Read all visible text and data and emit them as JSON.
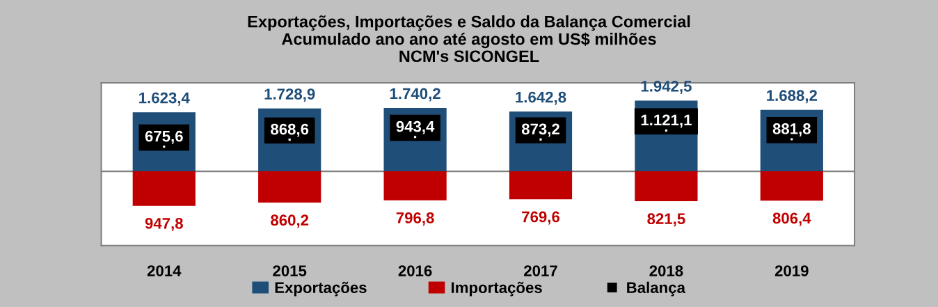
{
  "chart_data": {
    "type": "bar",
    "title": "Exportações, Importações e Saldo da Balança Comercial\nAcumulado ano ano até agosto em US$ milhões\nNCM's SICONGEL",
    "categories": [
      "2014",
      "2015",
      "2016",
      "2017",
      "2018",
      "2019"
    ],
    "stacked": true,
    "series": [
      {
        "name": "Exportações",
        "color": "#1f4e79",
        "values": [
          1623.4,
          1728.9,
          1740.2,
          1642.8,
          1942.5,
          1688.2
        ],
        "value_labels": [
          "1.623,4",
          "1.728,9",
          "1.740,2",
          "1.642,8",
          "1.942,5",
          "1.688,2"
        ]
      },
      {
        "name": "Importações",
        "color": "#c00000",
        "values": [
          -947.8,
          -860.2,
          -796.8,
          -769.6,
          -821.5,
          -806.4
        ]
      },
      {
        "name": "Balança",
        "type": "scatter",
        "marker": "square",
        "color": "#000000",
        "values": [
          675.6,
          868.6,
          943.4,
          873.2,
          1121.1,
          881.8
        ],
        "value_labels": [
          "675,6",
          "868,6",
          "943,4",
          "873,2",
          "1.121,1",
          "881,8"
        ]
      }
    ],
    "annotations": [
      {
        "text": "947,8",
        "x": "2014",
        "y": -947.8
      },
      {
        "text": "860,2",
        "x": "2015",
        "y": -860.2
      },
      {
        "text": "796,8",
        "x": "2016",
        "y": -796.8
      },
      {
        "text": "769,6",
        "x": "2017",
        "y": -769.6
      },
      {
        "text": "821,5",
        "x": "2018",
        "y": -821.5
      },
      {
        "text": "806,4",
        "x": "2019",
        "y": -806.4
      }
    ],
    "legend": "bottom",
    "grid": false
  }
}
